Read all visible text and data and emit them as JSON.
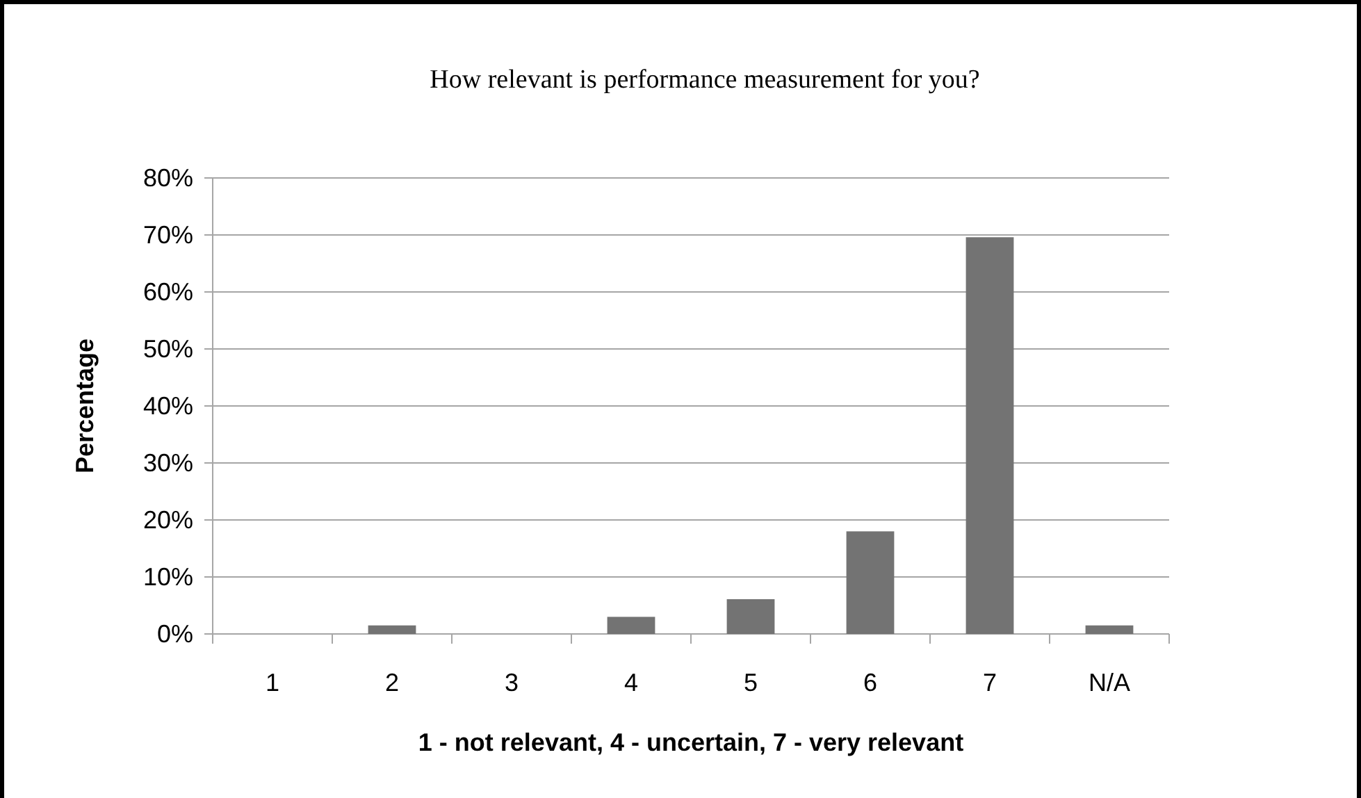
{
  "chart_data": {
    "type": "bar",
    "title": "How relevant is performance measurement for you?",
    "xlabel": "1 - not relevant, 4 - uncertain, 7 - very relevant",
    "ylabel": "Percentage",
    "categories": [
      "1",
      "2",
      "3",
      "4",
      "5",
      "6",
      "7",
      "N/A"
    ],
    "values": [
      0,
      1.5,
      0,
      3,
      6.1,
      18,
      69.6,
      1.5
    ],
    "color": "#737373",
    "ylim": [
      0,
      80
    ],
    "yticks": [
      {
        "value": 0,
        "label": "0%"
      },
      {
        "value": 10,
        "label": "10%"
      },
      {
        "value": 20,
        "label": "20%"
      },
      {
        "value": 30,
        "label": "30%"
      },
      {
        "value": 40,
        "label": "40%"
      },
      {
        "value": 50,
        "label": "50%"
      },
      {
        "value": 60,
        "label": "60%"
      },
      {
        "value": 70,
        "label": "70%"
      },
      {
        "value": 80,
        "label": "80%"
      }
    ],
    "grid": "y"
  }
}
